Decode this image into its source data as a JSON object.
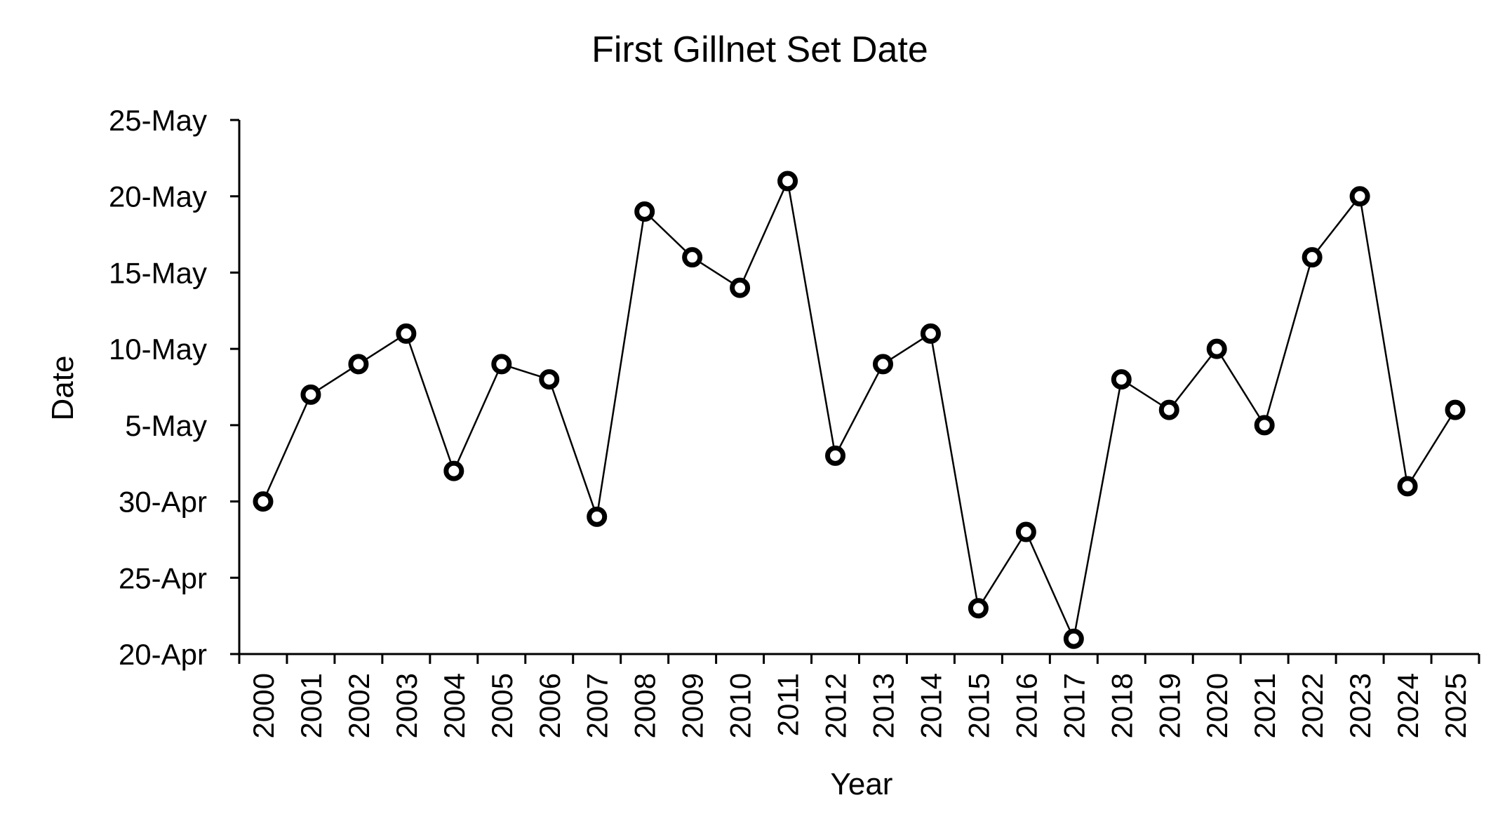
{
  "chart_data": {
    "type": "line",
    "title": "First Gillnet Set Date",
    "xlabel": "Year",
    "ylabel": "Date",
    "x": [
      "2000",
      "2001",
      "2002",
      "2003",
      "2004",
      "2005",
      "2006",
      "2007",
      "2008",
      "2009",
      "2010",
      "2011",
      "2012",
      "2013",
      "2014",
      "2015",
      "2016",
      "2017",
      "2018",
      "2019",
      "2020",
      "2021",
      "2022",
      "2023",
      "2024",
      "2025"
    ],
    "values": [
      "30-Apr",
      "7-May",
      "9-May",
      "11-May",
      "2-May",
      "9-May",
      "8-May",
      "29-Apr",
      "19-May",
      "16-May",
      "14-May",
      "21-May",
      "3-May",
      "9-May",
      "11-May",
      "23-Apr",
      "28-Apr",
      "21-Apr",
      "8-May",
      "6-May",
      "10-May",
      "5-May",
      "16-May",
      "20-May",
      "1-May",
      "6-May"
    ],
    "ylim": [
      "20-Apr",
      "25-May"
    ],
    "yticks": [
      "20-Apr",
      "25-Apr",
      "30-Apr",
      "5-May",
      "10-May",
      "15-May",
      "20-May",
      "25-May"
    ],
    "grid": false,
    "legend": "none",
    "marker": "open-circle",
    "line_color": "#000000",
    "marker_fill": "#ffffff"
  }
}
